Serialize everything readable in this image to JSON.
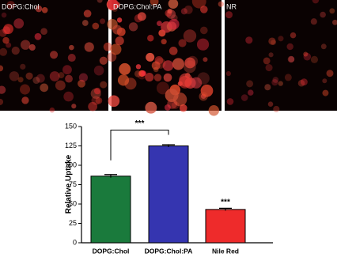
{
  "panels": [
    {
      "label": "DOPG:Chol",
      "brightness": 0.6
    },
    {
      "label": "DOPG:Chol:PA",
      "brightness": 1
    },
    {
      "label": "NR",
      "brightness": 0.3
    }
  ],
  "chart_data": {
    "type": "bar",
    "ylabel": "Relative Uptake",
    "categories": [
      "DOPG:Chol",
      "DOPG:Chol:PA",
      "Nile Red"
    ],
    "values": [
      86,
      125,
      43
    ],
    "errors": [
      2,
      1.5,
      1.5
    ],
    "colors": [
      "#1a7a3c",
      "#3535b0",
      "#ee2b2b"
    ],
    "ylim": [
      0,
      150
    ],
    "yticks": [
      0,
      25,
      50,
      75,
      100,
      125,
      150
    ],
    "annotations": [
      {
        "text": "***"
      },
      {
        "text": "***"
      }
    ]
  }
}
